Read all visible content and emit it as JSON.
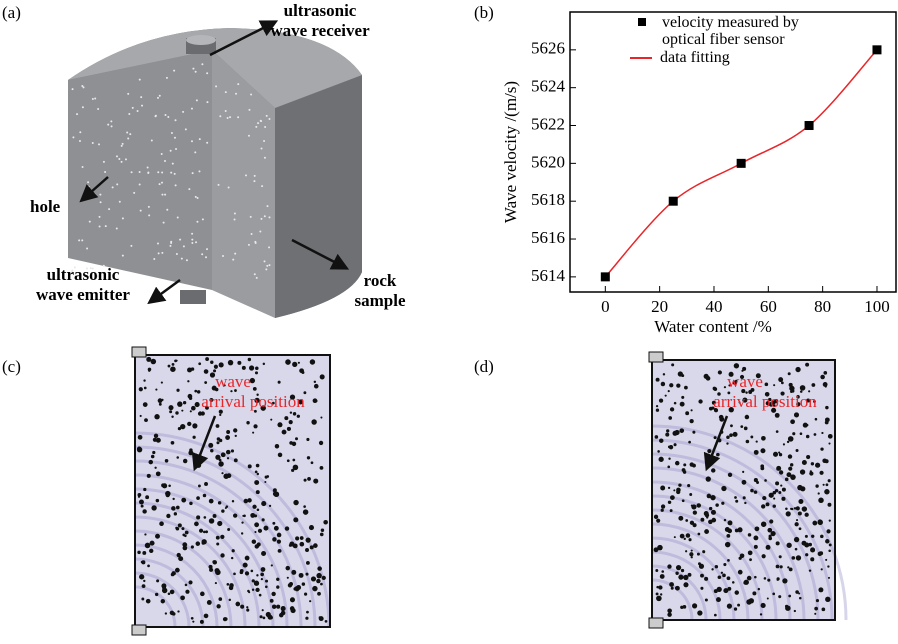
{
  "panel_labels": [
    "(a)",
    "(b)",
    "(c)",
    "(d)"
  ],
  "diagram": {
    "labels": [
      {
        "lines": [
          "ultrasonic",
          "wave receiver"
        ]
      },
      {
        "lines": [
          "hole"
        ]
      },
      {
        "lines": [
          "ultrasonic",
          "wave emitter"
        ]
      },
      {
        "lines": [
          "rock",
          "sample"
        ]
      }
    ]
  },
  "chart_data": {
    "type": "line",
    "x": [
      0,
      25,
      50,
      75,
      100
    ],
    "xlabel": "Water content /%",
    "ylabel": "Wave velocity /(m/s)",
    "xlim": [
      -13,
      107
    ],
    "ylim": [
      5613.2,
      5628
    ],
    "xticks": [
      0,
      20,
      40,
      60,
      80,
      100
    ],
    "yticks": [
      5614,
      5616,
      5618,
      5620,
      5622,
      5624,
      5626
    ],
    "legend": "upper left",
    "series": [
      {
        "name": "velocity measured by optical fiber sensor",
        "color": "#000000",
        "marker": "square",
        "values": [
          5614,
          5618,
          5620,
          5622,
          5626
        ]
      },
      {
        "name": "data fitting",
        "color": "#e8262a",
        "values": [
          5614,
          5618,
          5620,
          5622,
          5626
        ]
      }
    ]
  },
  "images": [
    {
      "annotation": [
        "wave",
        "arrival position"
      ]
    },
    {
      "annotation": [
        "wave",
        "arrival position"
      ]
    }
  ]
}
